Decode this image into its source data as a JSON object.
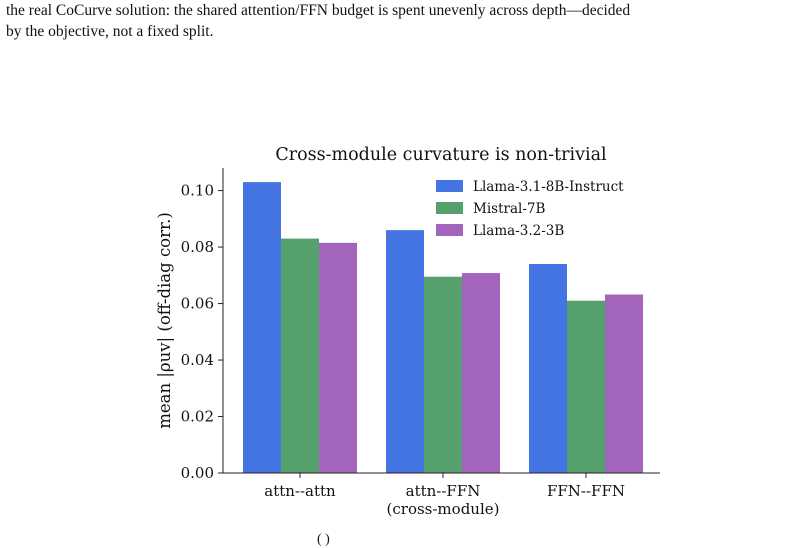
{
  "caption": {
    "lines": [
      "the real CoCurve solution: the shared attention/FFN budget is spent unevenly across depth—decided",
      "by the objective, not a fixed split."
    ]
  },
  "footer_fragment": "(    )",
  "chart_data": {
    "type": "bar",
    "title": "Cross-module curvature is non-trivial",
    "ylabel": "mean |ρuv| (off-diag corr.)",
    "xlabel": "",
    "categories": [
      "attn--attn",
      "attn--FFN\n(cross-module)",
      "FFN--FFN"
    ],
    "ylim": [
      0,
      0.108
    ],
    "yticks": [
      0.0,
      0.02,
      0.04,
      0.06,
      0.08,
      0.1
    ],
    "ytick_labels": [
      "0.00",
      "0.02",
      "0.04",
      "0.06",
      "0.08",
      "0.10"
    ],
    "legend_position": "top-right",
    "grid": false,
    "series": [
      {
        "name": "Llama-3.1-8B-Instruct",
        "color": "#4474e2",
        "values": [
          0.103,
          0.086,
          0.074
        ]
      },
      {
        "name": "Mistral-7B",
        "color": "#55a06d",
        "values": [
          0.083,
          0.0695,
          0.061
        ]
      },
      {
        "name": "Llama-3.2-3B",
        "color": "#a265bb",
        "values": [
          0.0815,
          0.0708,
          0.0632
        ]
      }
    ]
  }
}
